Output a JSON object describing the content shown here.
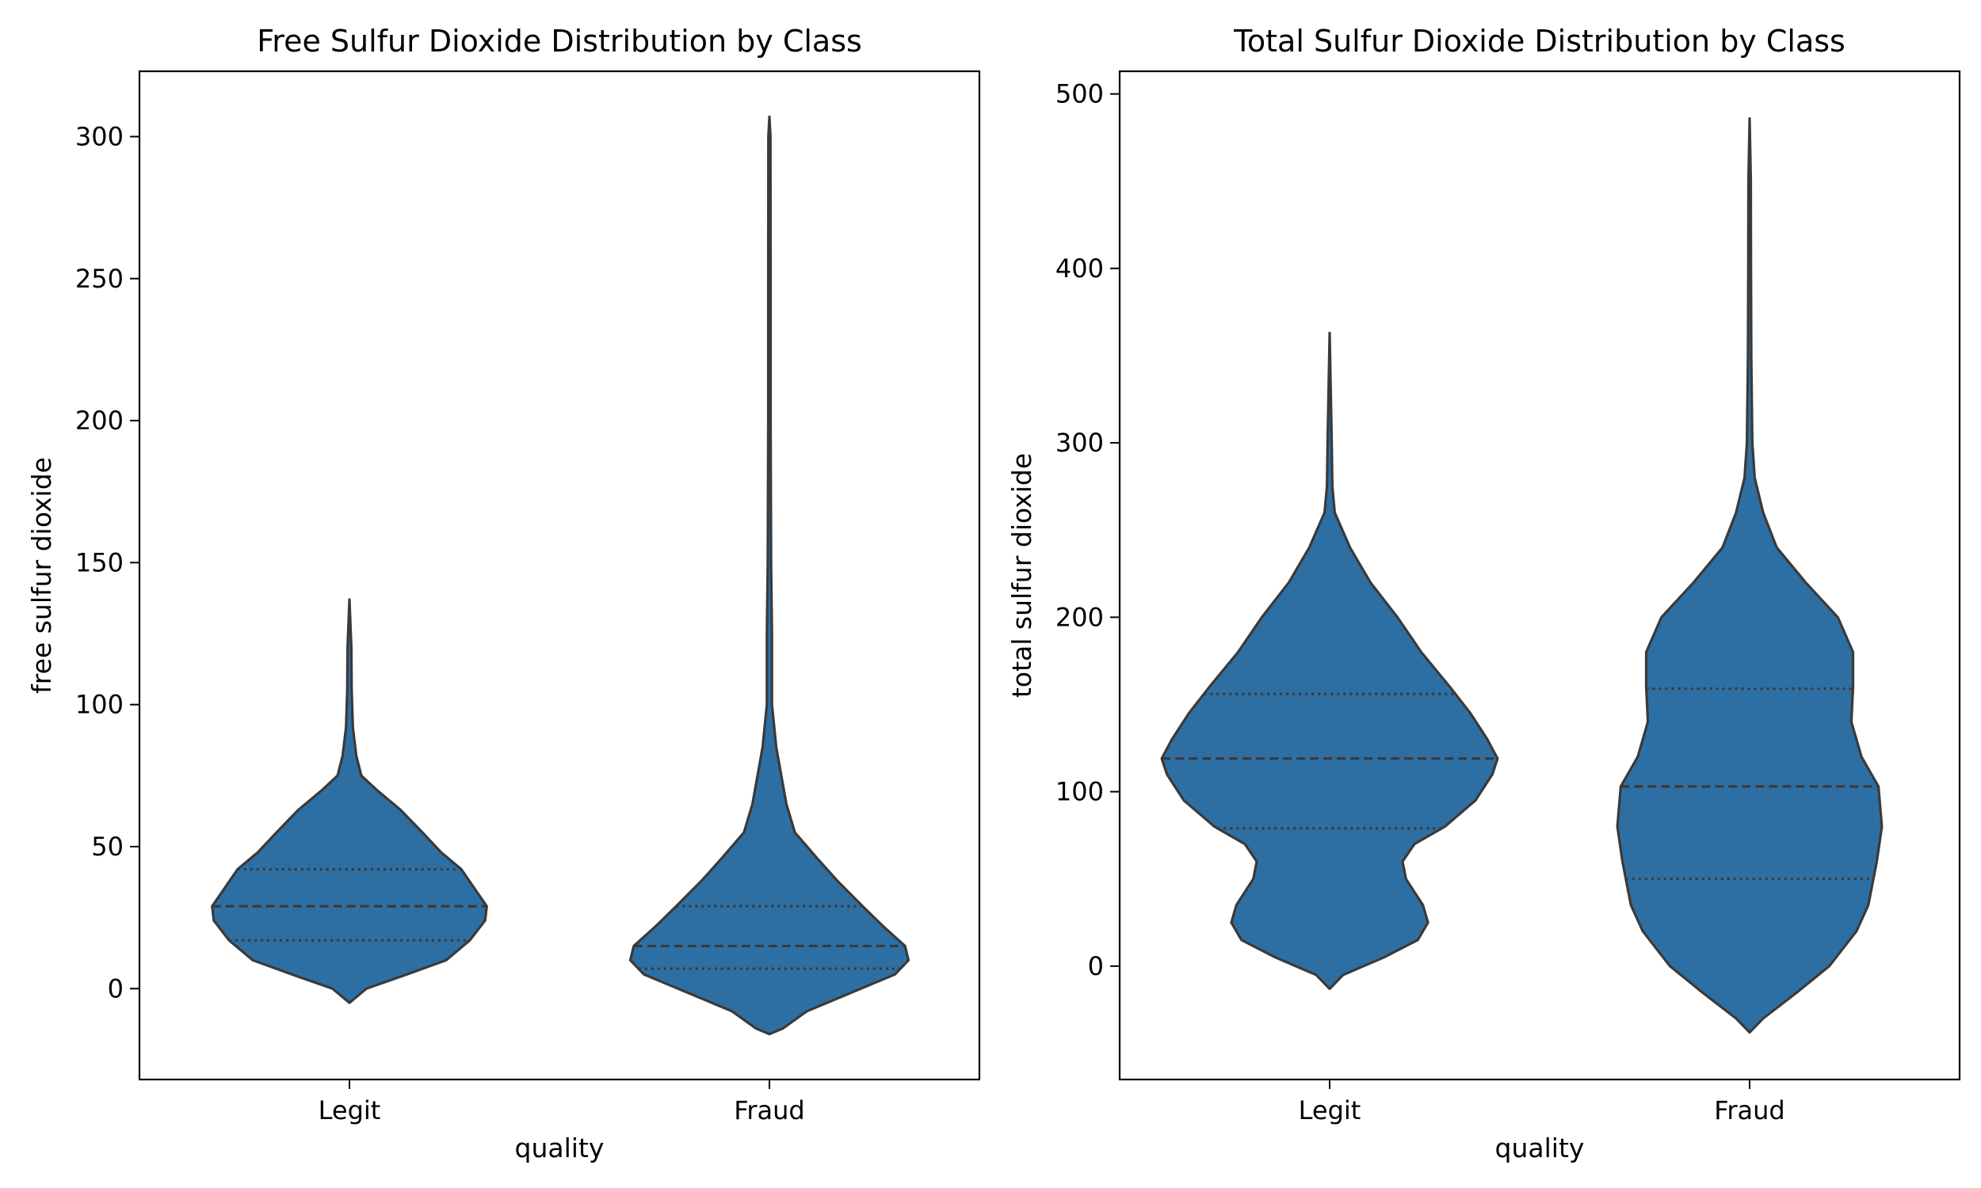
{
  "chart_data": [
    {
      "type": "violin",
      "title": "Free Sulfur Dioxide Distribution by Class",
      "xlabel": "quality",
      "ylabel": "free sulfur dioxide",
      "categories": [
        "Legit",
        "Fraud"
      ],
      "ylim": [
        -32,
        323
      ],
      "yticks": [
        0,
        50,
        100,
        150,
        200,
        250,
        300
      ],
      "color": "#2e6fa3",
      "grid": false,
      "legend": "none",
      "violins": [
        {
          "category": "Legit",
          "min": -5,
          "max": 137,
          "q1": 17,
          "median": 29,
          "q3": 42,
          "profile": [
            [
              -5,
              0
            ],
            [
              0,
              0.1
            ],
            [
              5,
              0.34
            ],
            [
              10,
              0.57
            ],
            [
              17,
              0.71
            ],
            [
              24,
              0.8
            ],
            [
              29,
              0.81
            ],
            [
              35,
              0.74
            ],
            [
              42,
              0.66
            ],
            [
              48,
              0.54
            ],
            [
              55,
              0.43
            ],
            [
              63,
              0.3
            ],
            [
              70,
              0.16
            ],
            [
              75,
              0.07
            ],
            [
              82,
              0.04
            ],
            [
              92,
              0.02
            ],
            [
              105,
              0.013
            ],
            [
              120,
              0.011
            ],
            [
              137,
              0
            ]
          ]
        },
        {
          "category": "Fraud",
          "min": -16,
          "max": 307,
          "q1": 7,
          "median": 15,
          "q3": 29,
          "profile": [
            [
              -16,
              0
            ],
            [
              -14,
              0.08
            ],
            [
              -8,
              0.22
            ],
            [
              -2,
              0.46
            ],
            [
              5,
              0.74
            ],
            [
              10,
              0.82
            ],
            [
              15,
              0.8
            ],
            [
              22,
              0.67
            ],
            [
              29,
              0.55
            ],
            [
              38,
              0.4
            ],
            [
              46,
              0.28
            ],
            [
              55,
              0.15
            ],
            [
              65,
              0.1
            ],
            [
              75,
              0.07
            ],
            [
              85,
              0.04
            ],
            [
              100,
              0.015
            ],
            [
              125,
              0.015
            ],
            [
              150,
              0.01
            ],
            [
              200,
              0.007
            ],
            [
              250,
              0.007
            ],
            [
              300,
              0.006
            ],
            [
              307,
              0
            ]
          ]
        }
      ]
    },
    {
      "type": "violin",
      "title": "Total Sulfur Dioxide Distribution by Class",
      "xlabel": "quality",
      "ylabel": "total sulfur dioxide",
      "categories": [
        "Legit",
        "Fraud"
      ],
      "ylim": [
        -65,
        513
      ],
      "yticks": [
        0,
        100,
        200,
        300,
        400,
        500
      ],
      "color": "#2e6fa3",
      "grid": false,
      "legend": "none",
      "violins": [
        {
          "category": "Legit",
          "min": -13,
          "max": 363,
          "q1": 79,
          "median": 119,
          "q3": 156,
          "profile": [
            [
              -13,
              0
            ],
            [
              -5,
              0.08
            ],
            [
              5,
              0.32
            ],
            [
              15,
              0.52
            ],
            [
              25,
              0.58
            ],
            [
              35,
              0.55
            ],
            [
              50,
              0.45
            ],
            [
              60,
              0.43
            ],
            [
              70,
              0.5
            ],
            [
              80,
              0.68
            ],
            [
              95,
              0.86
            ],
            [
              110,
              0.96
            ],
            [
              119,
              0.99
            ],
            [
              130,
              0.93
            ],
            [
              145,
              0.83
            ],
            [
              160,
              0.71
            ],
            [
              180,
              0.54
            ],
            [
              200,
              0.4
            ],
            [
              220,
              0.24
            ],
            [
              240,
              0.12
            ],
            [
              260,
              0.03
            ],
            [
              275,
              0.016
            ],
            [
              300,
              0.012
            ],
            [
              363,
              0
            ]
          ]
        },
        {
          "category": "Fraud",
          "min": -38,
          "max": 486,
          "q1": 50,
          "median": 103,
          "q3": 159,
          "profile": [
            [
              -38,
              0
            ],
            [
              -30,
              0.08
            ],
            [
              -15,
              0.28
            ],
            [
              0,
              0.47
            ],
            [
              20,
              0.63
            ],
            [
              35,
              0.7
            ],
            [
              60,
              0.75
            ],
            [
              80,
              0.78
            ],
            [
              103,
              0.76
            ],
            [
              120,
              0.66
            ],
            [
              140,
              0.6
            ],
            [
              160,
              0.61
            ],
            [
              180,
              0.61
            ],
            [
              200,
              0.52
            ],
            [
              220,
              0.33
            ],
            [
              240,
              0.16
            ],
            [
              260,
              0.08
            ],
            [
              280,
              0.03
            ],
            [
              300,
              0.016
            ],
            [
              350,
              0.01
            ],
            [
              400,
              0.008
            ],
            [
              450,
              0.007
            ],
            [
              486,
              0
            ]
          ]
        }
      ]
    }
  ]
}
